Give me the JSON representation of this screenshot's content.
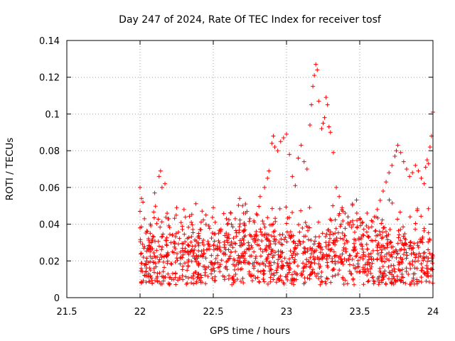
{
  "chart_data": {
    "type": "scatter",
    "title": "Day 247 of 2024, Rate Of TEC Index for receiver tosf",
    "xlabel": "GPS time / hours",
    "ylabel": "ROTI / TECUs",
    "xlim": [
      21.5,
      24
    ],
    "ylim": [
      0,
      0.14
    ],
    "xticks": [
      21.5,
      22,
      22.5,
      23,
      23.5,
      24
    ],
    "xtick_labels": [
      "21.5",
      "22",
      "22.5",
      "23",
      "23.5",
      "24"
    ],
    "yticks": [
      0,
      0.02,
      0.04,
      0.06,
      0.08,
      0.1,
      0.12,
      0.14
    ],
    "ytick_labels": [
      "0",
      "0.02",
      "0.04",
      "0.06",
      "0.08",
      "0.1",
      "0.12",
      "0.14"
    ],
    "grid": true,
    "marker": "+",
    "color": "#ff0000",
    "series": [
      {
        "name": "ROTI",
        "x": [
          22.0,
          22.0,
          22.0,
          22.01,
          22.02,
          22.03,
          22.05,
          22.07,
          22.1,
          22.13,
          22.14,
          22.15,
          22.17,
          22.19,
          22.22,
          22.25,
          22.3,
          22.35,
          22.4,
          22.45,
          22.5,
          22.55,
          22.6,
          22.62,
          22.65,
          22.68,
          22.7,
          22.72,
          22.75,
          22.78,
          22.8,
          22.82,
          22.85,
          22.87,
          22.88,
          22.9,
          22.91,
          22.92,
          22.94,
          22.96,
          22.98,
          23.0,
          23.02,
          23.04,
          23.06,
          23.08,
          23.1,
          23.12,
          23.14,
          23.16,
          23.17,
          23.18,
          23.19,
          23.2,
          23.21,
          23.22,
          23.24,
          23.25,
          23.26,
          23.27,
          23.28,
          23.29,
          23.3,
          23.32,
          23.34,
          23.36,
          23.38,
          23.4,
          23.42,
          23.45,
          23.48,
          23.5,
          23.52,
          23.55,
          23.58,
          23.6,
          23.62,
          23.64,
          23.66,
          23.68,
          23.7,
          23.72,
          23.74,
          23.75,
          23.76,
          23.78,
          23.8,
          23.82,
          23.84,
          23.86,
          23.88,
          23.9,
          23.92,
          23.94,
          23.95,
          23.96,
          23.97,
          23.98,
          23.99,
          24.0
        ],
        "y": [
          0.06,
          0.047,
          0.038,
          0.054,
          0.052,
          0.043,
          0.036,
          0.04,
          0.057,
          0.066,
          0.069,
          0.06,
          0.062,
          0.043,
          0.034,
          0.049,
          0.048,
          0.041,
          0.035,
          0.045,
          0.049,
          0.036,
          0.03,
          0.046,
          0.043,
          0.054,
          0.05,
          0.051,
          0.043,
          0.041,
          0.045,
          0.055,
          0.06,
          0.065,
          0.069,
          0.084,
          0.088,
          0.082,
          0.08,
          0.085,
          0.087,
          0.089,
          0.078,
          0.066,
          0.061,
          0.076,
          0.083,
          0.074,
          0.07,
          0.094,
          0.105,
          0.115,
          0.121,
          0.127,
          0.124,
          0.107,
          0.092,
          0.095,
          0.098,
          0.109,
          0.105,
          0.093,
          0.09,
          0.079,
          0.06,
          0.055,
          0.049,
          0.046,
          0.044,
          0.051,
          0.046,
          0.043,
          0.041,
          0.046,
          0.042,
          0.044,
          0.048,
          0.053,
          0.058,
          0.063,
          0.068,
          0.072,
          0.077,
          0.08,
          0.083,
          0.079,
          0.074,
          0.07,
          0.066,
          0.068,
          0.072,
          0.069,
          0.065,
          0.062,
          0.071,
          0.075,
          0.073,
          0.082,
          0.088,
          0.101
        ]
      }
    ]
  }
}
